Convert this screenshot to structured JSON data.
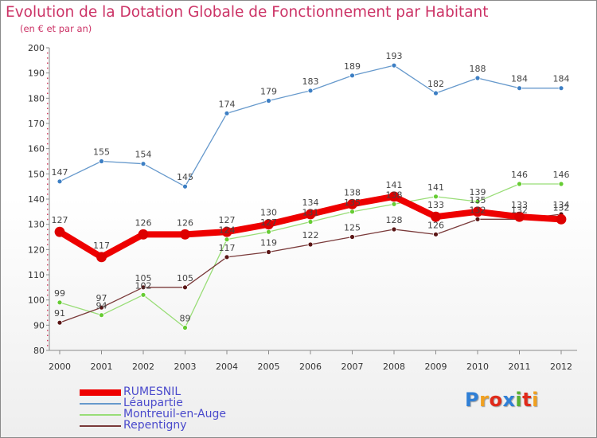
{
  "header": {
    "title": "Evolution de la Dotation Globale de Fonctionnement par Habitant",
    "subtitle": "(en € et par an)"
  },
  "logo": {
    "text": "Proxiti",
    "letters": [
      {
        "ch": "P",
        "color": "#2f7fd6"
      },
      {
        "ch": "r",
        "color": "#f0a020"
      },
      {
        "ch": "o",
        "color": "#e02a1a"
      },
      {
        "ch": "x",
        "color": "#2f7fd6"
      },
      {
        "ch": "i",
        "color": "#57b030"
      },
      {
        "ch": "t",
        "color": "#e02a1a"
      },
      {
        "ch": "i",
        "color": "#f0a020"
      }
    ]
  },
  "colors": {
    "title": "#cc3366",
    "axis": "#8a8a8a",
    "tick_text": "#333333",
    "label_text": "#444444",
    "legend_text": "#4a4acc"
  },
  "chart_data": {
    "type": "line",
    "title": "Evolution de la Dotation Globale de Fonctionnement par Habitant",
    "subtitle": "(en € et par an)",
    "xlabel": "",
    "ylabel": "",
    "x": [
      2000,
      2001,
      2002,
      2003,
      2004,
      2005,
      2006,
      2007,
      2008,
      2009,
      2010,
      2011,
      2012
    ],
    "ylim": [
      80,
      200
    ],
    "yticks": [
      80,
      90,
      100,
      110,
      120,
      130,
      140,
      150,
      160,
      170,
      180,
      190,
      200
    ],
    "grid": false,
    "legend_position": "bottom-left",
    "series": [
      {
        "name": "Léaupartie",
        "color": "#6699cc",
        "marker_color": "#3d7fc4",
        "values": [
          147,
          155,
          154,
          145,
          174,
          179,
          183,
          189,
          193,
          182,
          188,
          184,
          184
        ],
        "labels": [
          "147",
          "155",
          "154",
          "145",
          "174",
          "179",
          "183",
          "189",
          "193",
          "182",
          "188",
          "184",
          "184"
        ]
      },
      {
        "name": "Montreuil-en-Auge",
        "color": "#99dd77",
        "marker_color": "#66cc33",
        "values": [
          99,
          94,
          102,
          89,
          124,
          127,
          131,
          135,
          138,
          141,
          139,
          146,
          146
        ],
        "labels": [
          "99",
          "94",
          "102",
          "89",
          "124",
          "127",
          "131",
          "135",
          "138",
          "141",
          "139",
          "146",
          "146"
        ]
      },
      {
        "name": "Repentigny",
        "color": "#7a3a3a",
        "marker_color": "#5a1515",
        "values": [
          91,
          97,
          105,
          105,
          117,
          119,
          122,
          125,
          128,
          126,
          132,
          132,
          134
        ],
        "labels": [
          "91",
          "97",
          "105",
          "105",
          "117",
          "119",
          "122",
          "125",
          "128",
          "126",
          "132",
          "132",
          "134"
        ]
      },
      {
        "name": "RUMESNIL",
        "color": "#ee0000",
        "marker_color": "#dd0000",
        "values": [
          127,
          117,
          126,
          126,
          127,
          130,
          134,
          138,
          141,
          133,
          135,
          133,
          132
        ],
        "labels": [
          "127",
          "117",
          "126",
          "126",
          "127",
          "130",
          "134",
          "138",
          "141",
          "133",
          "135",
          "133",
          "132"
        ]
      }
    ],
    "legend": [
      {
        "name": "RUMESNIL",
        "color": "#ee0000",
        "thickness": 8
      },
      {
        "name": "Léaupartie",
        "color": "#6699cc",
        "thickness": 1.5
      },
      {
        "name": "Montreuil-en-Auge",
        "color": "#99dd77",
        "thickness": 1.5
      },
      {
        "name": "Repentigny",
        "color": "#7a3a3a",
        "thickness": 1.5
      }
    ]
  }
}
